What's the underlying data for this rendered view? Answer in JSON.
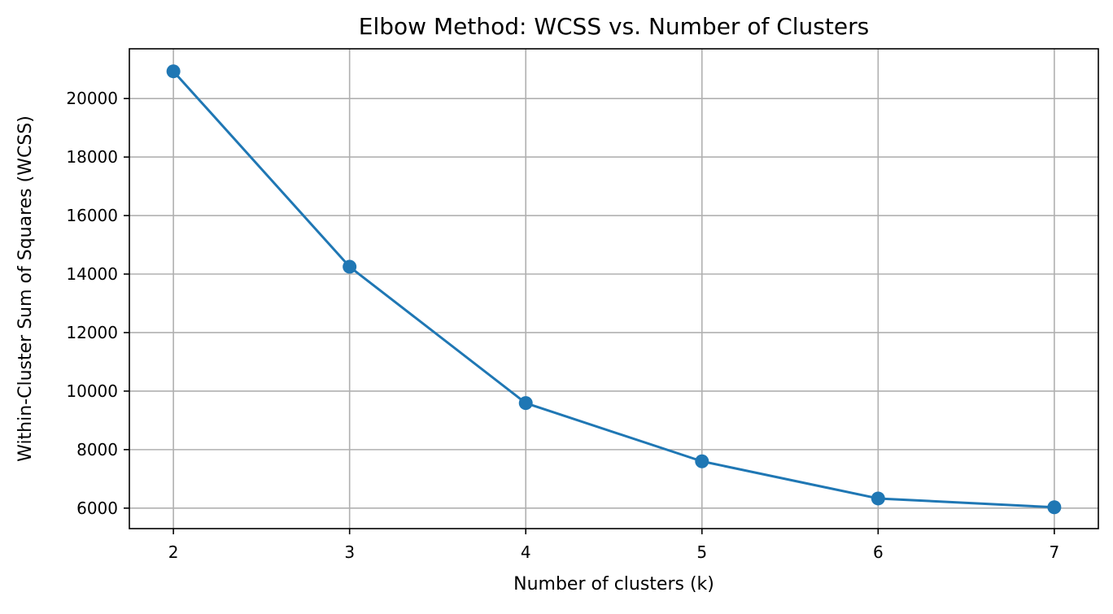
{
  "chart_data": {
    "type": "line",
    "title": "Elbow Method: WCSS vs. Number of Clusters",
    "xlabel": "Number of clusters (k)",
    "ylabel": "Within-Cluster Sum of Squares (WCSS)",
    "x": [
      2,
      3,
      4,
      5,
      6,
      7
    ],
    "series": [
      {
        "values": [
          20930,
          14250,
          9590,
          7600,
          6330,
          6030
        ],
        "color": "#1f77b4",
        "marker": "circle"
      }
    ],
    "xticks": [
      "2",
      "3",
      "4",
      "5",
      "6",
      "7"
    ],
    "yticks": [
      "6000",
      "8000",
      "10000",
      "12000",
      "14000",
      "16000",
      "18000",
      "20000"
    ],
    "ytick_values": [
      6000,
      8000,
      10000,
      12000,
      14000,
      16000,
      18000,
      20000
    ],
    "xlim": [
      1.75,
      7.25
    ],
    "ylim": [
      5300,
      21700
    ],
    "grid": true,
    "legend": "none"
  }
}
